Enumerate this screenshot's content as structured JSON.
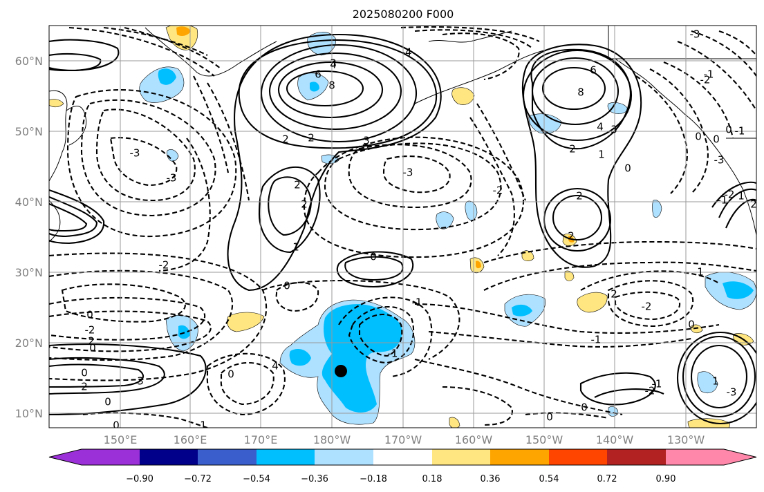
{
  "title": "2025080200 F000",
  "lat_labels": [
    "60°N",
    "50°N",
    "40°N",
    "30°N",
    "20°N",
    "10°N"
  ],
  "lon_labels": [
    "150°E",
    "160°E",
    "170°E",
    "180°W",
    "170°W",
    "160°W",
    "150°W",
    "140°W",
    "130°W"
  ],
  "colorbar": {
    "tick_labels": [
      "−0.90",
      "−0.72",
      "−0.54",
      "−0.36",
      "−0.18",
      "0.18",
      "0.36",
      "0.54",
      "0.72",
      "0.90"
    ],
    "colors": [
      "#9b30d8",
      "#00008b",
      "#3a5fcd",
      "#00bfff",
      "#aee0ff",
      "#ffffff",
      "#ffe680",
      "#ffa500",
      "#ff4500",
      "#b22222",
      "#ff88aa"
    ]
  },
  "marker": {
    "label": "storm-center",
    "lat": 16,
    "lon": -179
  },
  "contour_labels": [
    {
      "t": "6"
    },
    {
      "t": "8"
    },
    {
      "t": "4"
    },
    {
      "t": "3"
    },
    {
      "t": "2"
    },
    {
      "t": "2"
    },
    {
      "t": "2"
    },
    {
      "t": "2"
    },
    {
      "t": "1"
    },
    {
      "t": "0"
    },
    {
      "t": "-3"
    },
    {
      "t": "-3"
    },
    {
      "t": "-2"
    },
    {
      "t": "-1"
    },
    {
      "t": "6"
    },
    {
      "t": "8"
    },
    {
      "t": "4"
    },
    {
      "t": "3"
    },
    {
      "t": "2"
    },
    {
      "t": "1"
    },
    {
      "t": "0"
    },
    {
      "t": "2"
    },
    {
      "t": "2"
    },
    {
      "t": "-1"
    },
    {
      "t": "-2"
    },
    {
      "t": "-3"
    },
    {
      "t": "0"
    },
    {
      "t": "-1"
    },
    {
      "t": "-2"
    },
    {
      "t": "-3"
    },
    {
      "t": "0"
    },
    {
      "t": "0"
    },
    {
      "t": "-1"
    },
    {
      "t": "-2"
    },
    {
      "t": "-1"
    },
    {
      "t": "0"
    },
    {
      "t": "2"
    },
    {
      "t": "-2"
    },
    {
      "t": "1"
    },
    {
      "t": "0"
    },
    {
      "t": "-1"
    },
    {
      "t": "-2"
    },
    {
      "t": "-3"
    },
    {
      "t": "1"
    },
    {
      "t": "0"
    },
    {
      "t": "2"
    },
    {
      "t": "3"
    },
    {
      "t": "0"
    },
    {
      "t": "-2"
    },
    {
      "t": "2"
    },
    {
      "t": "0"
    },
    {
      "t": "0"
    },
    {
      "t": "2"
    },
    {
      "t": "0"
    },
    {
      "t": "1"
    },
    {
      "t": "0"
    },
    {
      "t": "4"
    },
    {
      "t": "3"
    },
    {
      "t": "-4"
    },
    {
      "t": "-3"
    },
    {
      "t": "-1"
    },
    {
      "t": "0"
    },
    {
      "t": "1"
    },
    {
      "t": "2"
    },
    {
      "t": "0"
    }
  ]
}
